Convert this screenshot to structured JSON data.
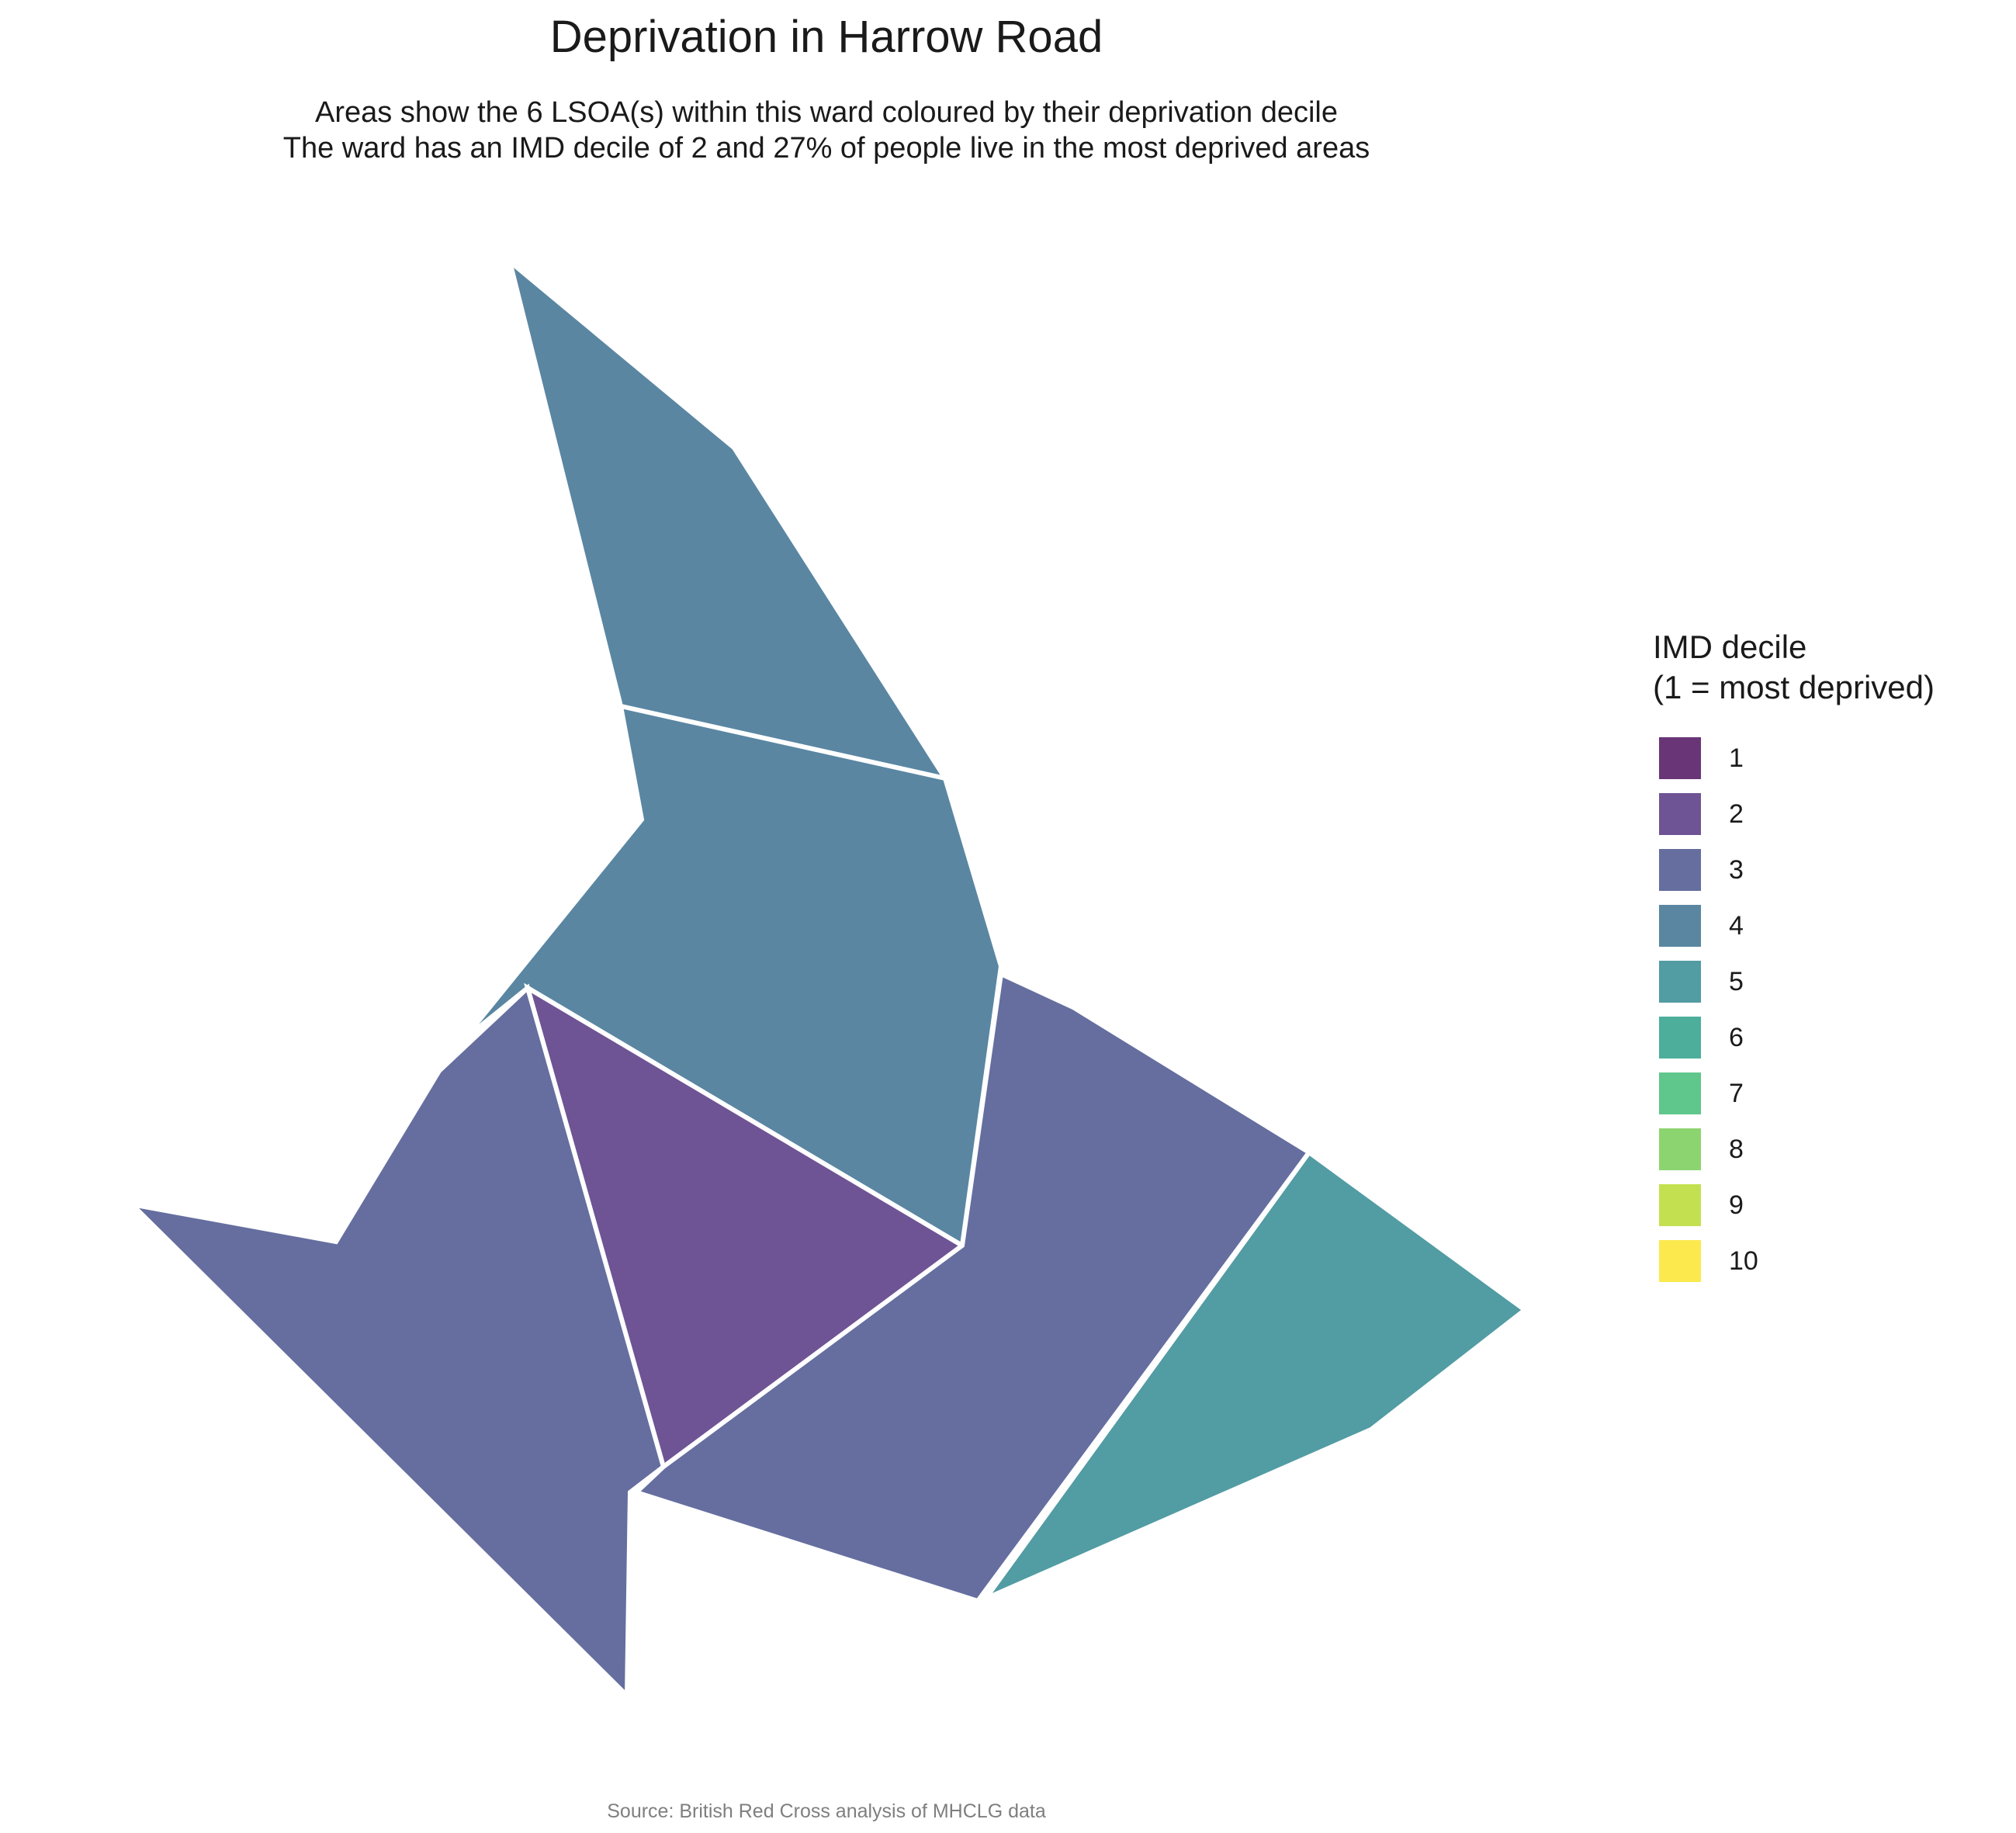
{
  "title": "Deprivation in Harrow Road",
  "subtitle": {
    "line1": "Areas show the 6 LSOA(s) within this ward coloured by their deprivation decile",
    "line2": "The ward has an IMD decile of 2 and 27% of people live in the most deprived areas"
  },
  "legend": {
    "title_line1": "IMD decile",
    "title_line2": "(1 = most deprived)",
    "items": [
      {
        "label": "1",
        "color": "#6a3577"
      },
      {
        "label": "2",
        "color": "#6e5494"
      },
      {
        "label": "3",
        "color": "#656e9f"
      },
      {
        "label": "4",
        "color": "#5a86a2"
      },
      {
        "label": "5",
        "color": "#529ca3"
      },
      {
        "label": "6",
        "color": "#4daf9b"
      },
      {
        "label": "7",
        "color": "#5fc68c"
      },
      {
        "label": "8",
        "color": "#8cd46f"
      },
      {
        "label": "9",
        "color": "#c3e050"
      },
      {
        "label": "10",
        "color": "#fce94e"
      }
    ]
  },
  "map": {
    "lsoas": [
      {
        "id": "lsoa-north",
        "decile": 4,
        "color": "#5a86a2"
      },
      {
        "id": "lsoa-central",
        "decile": 4,
        "color": "#5a86a2"
      },
      {
        "id": "lsoa-west",
        "decile": 3,
        "color": "#656e9f"
      },
      {
        "id": "lsoa-middle",
        "decile": 2,
        "color": "#6e5494"
      },
      {
        "id": "lsoa-southeast",
        "decile": 3,
        "color": "#656e9f"
      },
      {
        "id": "lsoa-east",
        "decile": 5,
        "color": "#529ca3"
      }
    ]
  },
  "source": "Source: British Red Cross analysis of MHCLG data"
}
